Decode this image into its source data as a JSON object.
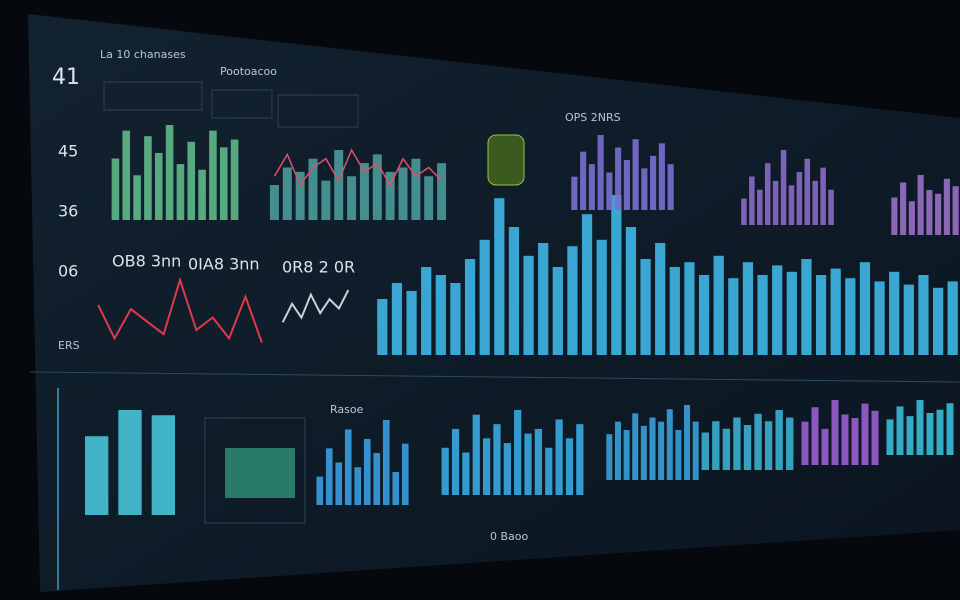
{
  "header": {
    "number": "41",
    "subtitle": "La 10 chanases",
    "title": "Pootoacoo"
  },
  "stats": [
    "45",
    "36",
    "06",
    "ERS"
  ],
  "panel_labels": [
    "OPS 2NRS",
    "OB8 3nn",
    "0IA8 3nn",
    "0R8 2 0R",
    "Rasoe",
    "0 Baoo"
  ],
  "chart_data": [
    {
      "type": "bar",
      "color": "#5fb88a",
      "values": [
        55,
        80,
        40,
        75,
        60,
        85,
        50,
        70,
        45,
        80,
        65,
        72
      ]
    },
    {
      "type": "bar",
      "color": "#4a9a9a",
      "values": [
        40,
        60,
        55,
        70,
        45,
        80,
        50,
        65,
        75,
        55,
        60,
        70,
        50,
        65
      ],
      "line_values": [
        50,
        75,
        40,
        60,
        70,
        45,
        80,
        55,
        65,
        40,
        70,
        50,
        60,
        45
      ],
      "line_color": "#e0506a"
    },
    {
      "type": "line",
      "color": "#e0384c",
      "values": [
        60,
        20,
        55,
        40,
        25,
        90,
        30,
        45,
        20,
        70,
        15
      ]
    },
    {
      "type": "line",
      "color": "#c8d2dc",
      "values": [
        30,
        50,
        35,
        60,
        40,
        55,
        45,
        65
      ]
    },
    {
      "type": "bar",
      "color": "#3fb6e6",
      "values": [
        35,
        45,
        40,
        55,
        50,
        45,
        60,
        72,
        98,
        80,
        62,
        70,
        55,
        68,
        88,
        72,
        100,
        80,
        60,
        70,
        55,
        58,
        50,
        62,
        48,
        58,
        50,
        56,
        52,
        60,
        50,
        54,
        48,
        58,
        46,
        52,
        44,
        50,
        42,
        46
      ]
    },
    {
      "type": "bar",
      "color": "#7a6fd0",
      "values": [
        40,
        70,
        55,
        90,
        45,
        75,
        60,
        85,
        50,
        65,
        80,
        55
      ]
    },
    {
      "type": "bar",
      "color": "#8a6ac8",
      "values": [
        30,
        55,
        40,
        70,
        50,
        85,
        45,
        60,
        75,
        50,
        65,
        40
      ]
    },
    {
      "type": "bar",
      "color": "#9a70c8",
      "values": [
        50,
        70,
        45,
        80,
        60,
        55,
        75,
        65
      ]
    },
    {
      "type": "bar",
      "color": "#47c6d8",
      "values": [
        75,
        100,
        95
      ]
    },
    {
      "type": "bar",
      "color": "#3a9ee0",
      "values": [
        30,
        60,
        45,
        80,
        40,
        70,
        55,
        90,
        35,
        65
      ]
    },
    {
      "type": "bar",
      "color": "#3aa8e0",
      "values": [
        50,
        70,
        45,
        85,
        60,
        75,
        55,
        90,
        65,
        70,
        50,
        80,
        60,
        75
      ]
    },
    {
      "type": "bar",
      "color": "#3aa0d8",
      "values": [
        55,
        70,
        60,
        80,
        65,
        75,
        70,
        85,
        60,
        90,
        70
      ]
    },
    {
      "type": "bar",
      "color": "#3ab0d0",
      "values": [
        50,
        65,
        55,
        70,
        60,
        75,
        65,
        80,
        70
      ]
    },
    {
      "type": "bar",
      "color": "#9a5ed0",
      "values": [
        60,
        80,
        50,
        90,
        70,
        65,
        85,
        75
      ]
    },
    {
      "type": "bar",
      "color": "#3abcd8",
      "values": [
        55,
        75,
        60,
        85,
        65,
        70,
        80
      ]
    }
  ]
}
